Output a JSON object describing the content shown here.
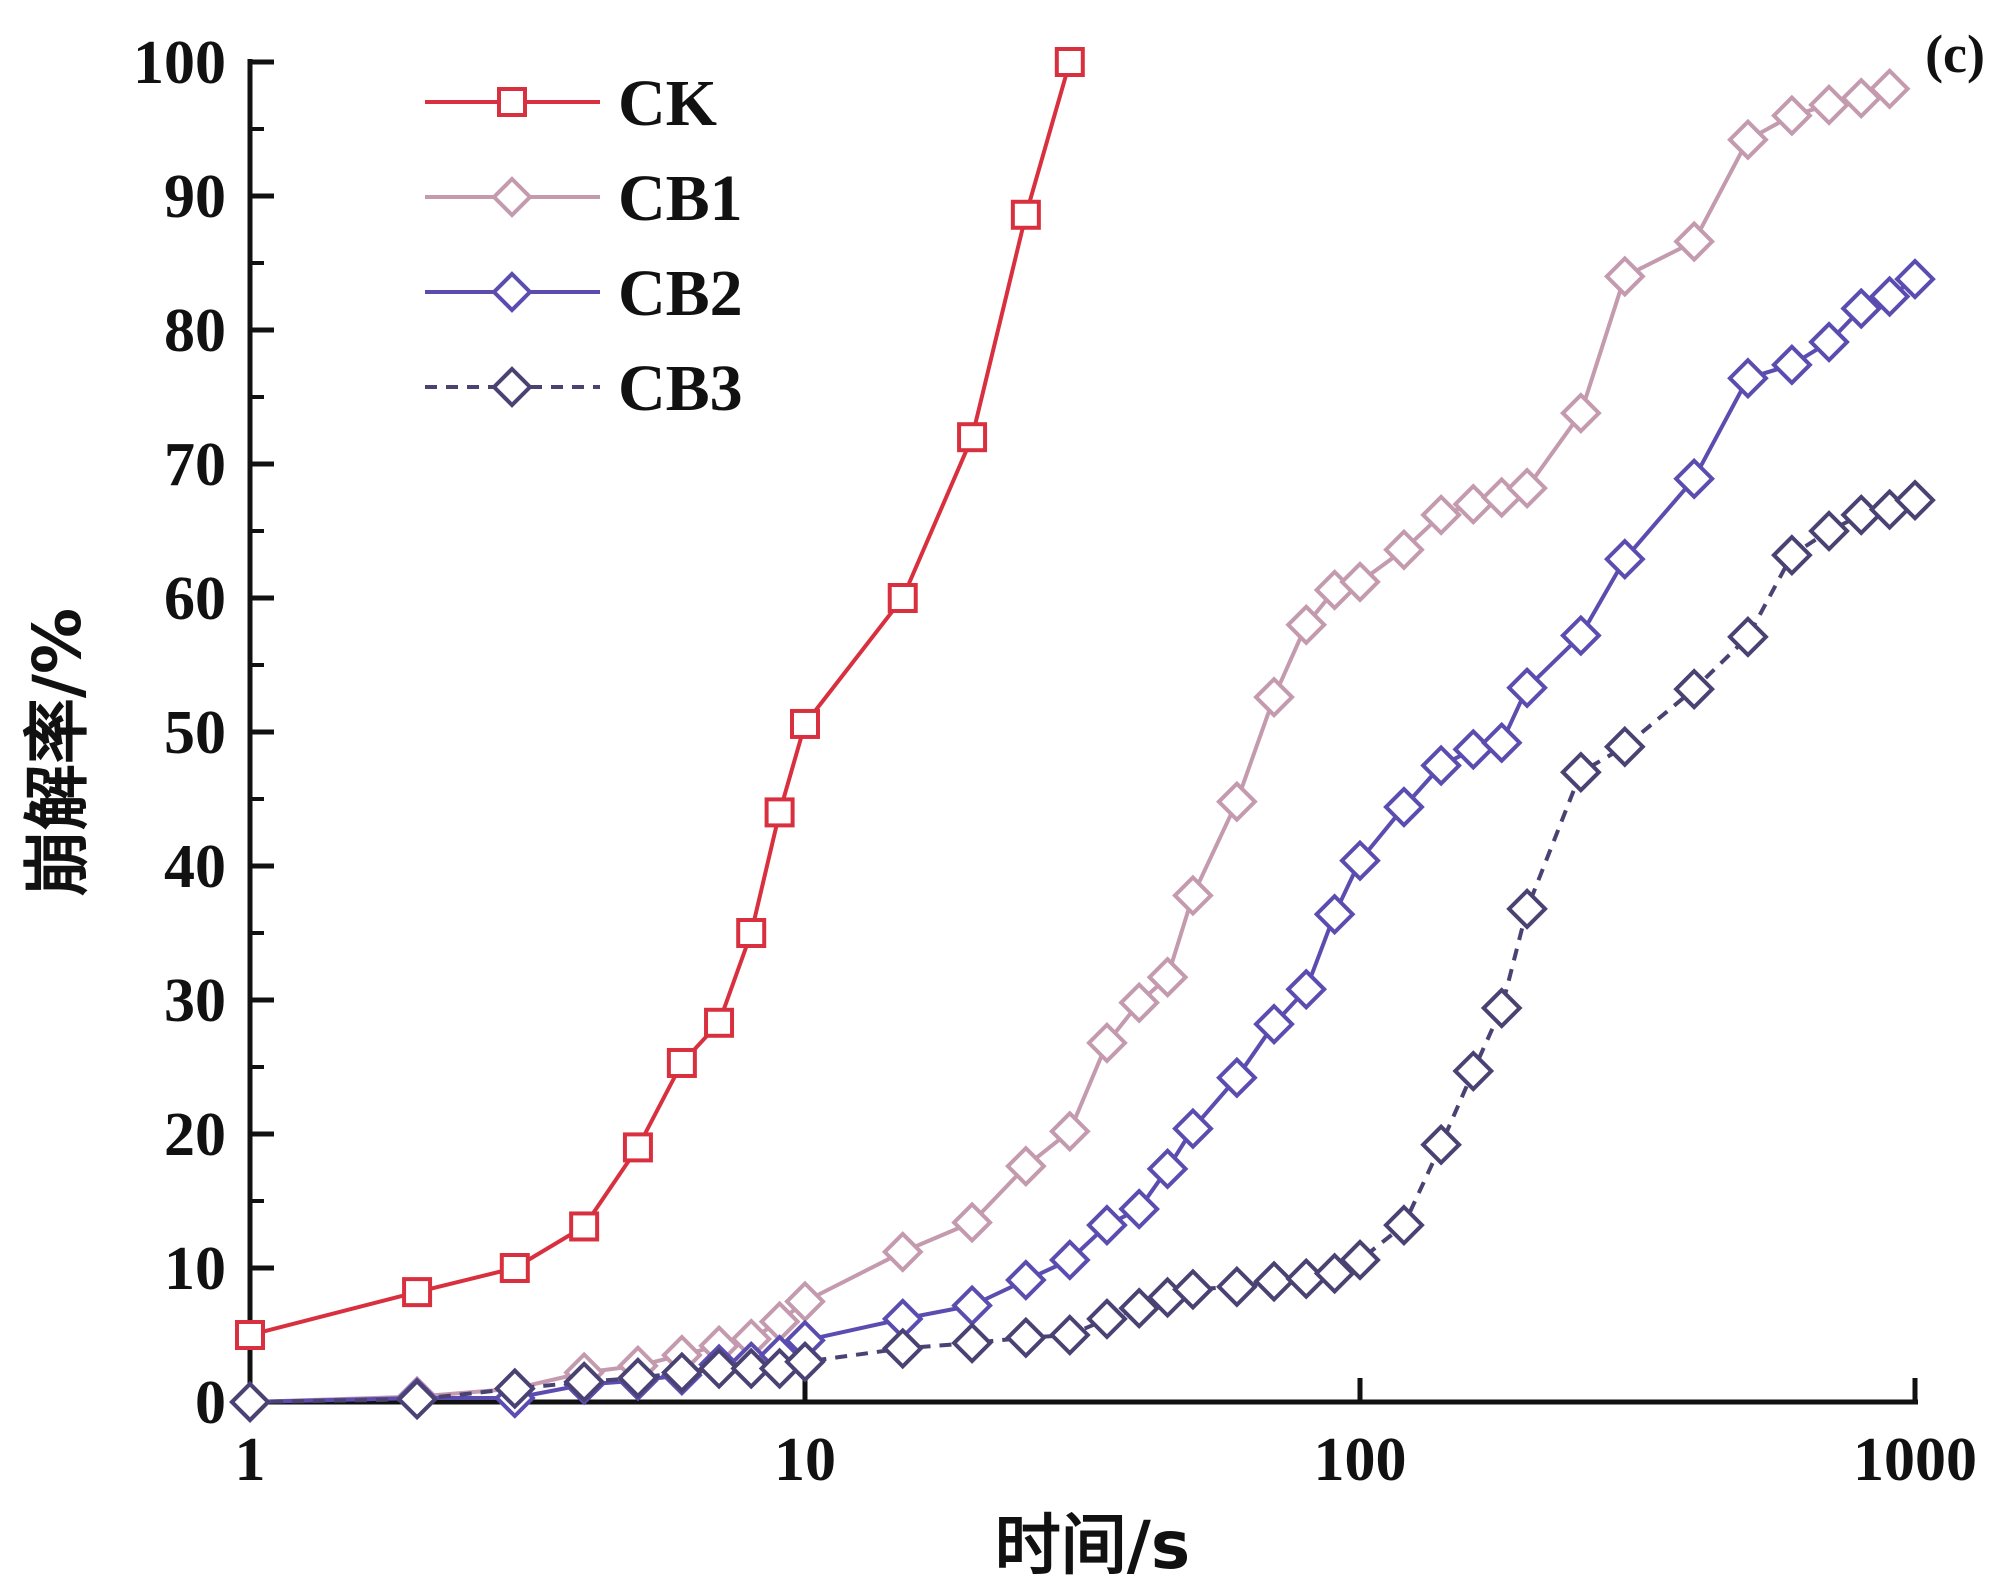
{
  "chart_data": {
    "type": "line",
    "panel_label": "(c)",
    "xlabel": "时间/s",
    "ylabel": "崩解率/%",
    "xscale": "log",
    "xlim": [
      1,
      1000
    ],
    "ylim": [
      0,
      100
    ],
    "x_ticks": [
      1,
      10,
      100,
      1000
    ],
    "x_tick_labels": [
      "1",
      "10",
      "100",
      "1000"
    ],
    "y_ticks": [
      0,
      10,
      20,
      30,
      40,
      50,
      60,
      70,
      80,
      90,
      100
    ],
    "y_tick_labels": [
      "0",
      "10",
      "20",
      "30",
      "40",
      "50",
      "60",
      "70",
      "80",
      "90",
      "100"
    ],
    "legend_position": "top-left",
    "series": [
      {
        "name": "CK",
        "color": "#d9303f",
        "marker": "square",
        "dashed": false,
        "x": [
          1,
          2,
          3,
          4,
          5,
          6,
          7,
          8,
          9,
          10,
          15,
          20,
          25,
          30
        ],
        "y": [
          5,
          8.2,
          10,
          13.1,
          19,
          25.3,
          28.3,
          35,
          44,
          50.6,
          60,
          72,
          88.6,
          100
        ]
      },
      {
        "name": "CB1",
        "color": "#c49aae",
        "marker": "diamond",
        "dashed": false,
        "x": [
          1,
          2,
          3,
          4,
          5,
          6,
          7,
          8,
          9,
          10,
          15,
          20,
          25,
          30,
          35,
          40,
          45,
          50,
          60,
          70,
          80,
          90,
          100,
          120,
          140,
          160,
          180,
          200,
          250,
          300,
          400,
          500,
          600,
          700,
          800,
          900
        ],
        "y": [
          0,
          0.4,
          1,
          2.2,
          2.7,
          3.5,
          4.2,
          4.7,
          6,
          7.5,
          11.2,
          13.4,
          17.6,
          20.2,
          26.8,
          29.8,
          31.7,
          37.8,
          44.8,
          52.6,
          58,
          60.6,
          61.2,
          63.6,
          66.2,
          67,
          67.5,
          68.2,
          73.8,
          84,
          86.6,
          94.2,
          96,
          96.8,
          97.3,
          98
        ]
      },
      {
        "name": "CB2",
        "color": "#5b4db0",
        "marker": "diamond",
        "dashed": false,
        "x": [
          1,
          2,
          3,
          4,
          5,
          6,
          7,
          8,
          9,
          10,
          15,
          20,
          25,
          30,
          35,
          40,
          45,
          50,
          60,
          70,
          80,
          90,
          100,
          120,
          140,
          160,
          180,
          200,
          250,
          300,
          400,
          500,
          600,
          700,
          800,
          900,
          1000
        ],
        "y": [
          0,
          0.3,
          0.3,
          1.3,
          1.6,
          2,
          2.8,
          3,
          3.5,
          4.6,
          6.2,
          7.2,
          9.1,
          10.6,
          13.2,
          14.4,
          17.4,
          20.4,
          24.2,
          28.2,
          30.8,
          36.4,
          40.4,
          44.4,
          47.5,
          48.7,
          49.2,
          53.3,
          57.2,
          62.9,
          68.9,
          76.4,
          77.4,
          79.1,
          81.6,
          82.5,
          83.8
        ]
      },
      {
        "name": "CB3",
        "color": "#4a4272",
        "marker": "diamond",
        "dashed": true,
        "x": [
          1,
          2,
          3,
          4,
          5,
          6,
          7,
          8,
          9,
          10,
          15,
          20,
          25,
          30,
          35,
          40,
          45,
          50,
          60,
          70,
          80,
          90,
          100,
          120,
          140,
          160,
          180,
          200,
          250,
          300,
          400,
          500,
          600,
          700,
          800,
          900,
          1000
        ],
        "y": [
          0,
          0.2,
          1,
          1.5,
          1.8,
          2.2,
          2.5,
          2.5,
          2.5,
          3,
          4,
          4.4,
          4.8,
          5,
          6.2,
          7,
          7.8,
          8.4,
          8.6,
          9,
          9.2,
          9.6,
          10.6,
          13.2,
          19.2,
          24.7,
          29.4,
          36.8,
          47,
          48.9,
          53.2,
          57.1,
          63.2,
          65,
          66.2,
          66.6,
          67.3
        ]
      }
    ]
  }
}
